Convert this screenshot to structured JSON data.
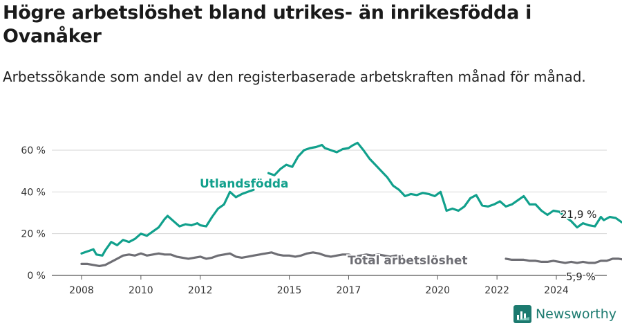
{
  "title": "Högre arbetslöshet bland utrikes- än inrikesfödda i Ovanåker",
  "subtitle": "Arbetssökande som andel av den registerbaserade arbetskraften månad för månad.",
  "brand": {
    "name": "Newsworthy",
    "color": "#1c7a6f"
  },
  "chart_data": {
    "type": "line",
    "ylim": [
      0,
      67
    ],
    "xlim": [
      2007.75,
      2025.5
    ],
    "y_ticks": [
      {
        "value": 0,
        "label": "0 %"
      },
      {
        "value": 20,
        "label": "20 %"
      },
      {
        "value": 40,
        "label": "40 %"
      },
      {
        "value": 60,
        "label": "60 %"
      }
    ],
    "x_ticks": [
      {
        "value": 2008,
        "label": "2008"
      },
      {
        "value": 2010,
        "label": "2010"
      },
      {
        "value": 2012,
        "label": "2012"
      },
      {
        "value": 2015,
        "label": "2015"
      },
      {
        "value": 2017,
        "label": "2017"
      },
      {
        "value": 2020,
        "label": "2020"
      },
      {
        "value": 2022,
        "label": "2022"
      },
      {
        "value": 2024,
        "label": "2024"
      }
    ],
    "grid": true,
    "series": [
      {
        "name": "Utlandsfödda",
        "color": "#11a08c",
        "end_label": "21,9 %",
        "points": [
          [
            2008.0,
            10.5
          ],
          [
            2008.2,
            11.5
          ],
          [
            2008.4,
            12.5
          ],
          [
            2008.5,
            10.0
          ],
          [
            2008.7,
            9.5
          ],
          [
            2008.8,
            12.0
          ],
          [
            2009.0,
            16.0
          ],
          [
            2009.2,
            14.5
          ],
          [
            2009.4,
            17.0
          ],
          [
            2009.6,
            16.0
          ],
          [
            2009.8,
            17.5
          ],
          [
            2010.0,
            20.0
          ],
          [
            2010.2,
            19.0
          ],
          [
            2010.4,
            21.0
          ],
          [
            2010.6,
            23.0
          ],
          [
            2010.8,
            27.0
          ],
          [
            2010.9,
            28.5
          ],
          [
            2011.1,
            26.0
          ],
          [
            2011.3,
            23.5
          ],
          [
            2011.5,
            24.5
          ],
          [
            2011.7,
            24.0
          ],
          [
            2011.9,
            25.0
          ],
          [
            2012.0,
            24.0
          ],
          [
            2012.2,
            23.5
          ],
          [
            2012.4,
            28.0
          ],
          [
            2012.6,
            32.0
          ],
          [
            2012.8,
            34.0
          ],
          [
            2013.0,
            40.0
          ],
          [
            2013.2,
            37.5
          ],
          [
            2013.4,
            39.0
          ],
          [
            2013.6,
            40.0
          ],
          [
            2013.8,
            41.0
          ],
          null,
          [
            2014.3,
            49.0
          ],
          [
            2014.5,
            48.0
          ],
          [
            2014.7,
            51.0
          ],
          [
            2014.9,
            53.0
          ],
          [
            2015.1,
            52.0
          ],
          [
            2015.3,
            57.0
          ],
          [
            2015.5,
            60.0
          ],
          [
            2015.7,
            61.0
          ],
          [
            2015.9,
            61.5
          ],
          [
            2016.1,
            62.5
          ],
          [
            2016.2,
            61.0
          ],
          [
            2016.4,
            60.0
          ],
          [
            2016.6,
            59.0
          ],
          [
            2016.8,
            60.5
          ],
          [
            2017.0,
            61.0
          ],
          [
            2017.1,
            62.0
          ],
          [
            2017.3,
            63.5
          ],
          [
            2017.5,
            60.0
          ],
          [
            2017.7,
            56.0
          ],
          [
            2017.9,
            53.0
          ],
          [
            2018.1,
            50.0
          ],
          [
            2018.3,
            47.0
          ],
          [
            2018.5,
            43.0
          ],
          [
            2018.7,
            41.0
          ],
          [
            2018.9,
            38.0
          ],
          [
            2019.1,
            39.0
          ],
          [
            2019.3,
            38.5
          ],
          [
            2019.5,
            39.5
          ],
          [
            2019.7,
            39.0
          ],
          [
            2019.9,
            38.0
          ],
          [
            2020.1,
            40.0
          ],
          [
            2020.3,
            31.0
          ],
          [
            2020.5,
            32.0
          ],
          [
            2020.7,
            31.0
          ],
          [
            2020.9,
            33.0
          ],
          [
            2021.1,
            37.0
          ],
          [
            2021.3,
            38.5
          ],
          [
            2021.5,
            33.5
          ],
          [
            2021.7,
            33.0
          ],
          [
            2021.9,
            34.0
          ],
          [
            2022.1,
            35.5
          ],
          [
            2022.3,
            33.0
          ],
          [
            2022.5,
            34.0
          ],
          [
            2022.7,
            36.0
          ],
          [
            2022.9,
            38.0
          ],
          [
            2023.1,
            34.0
          ],
          [
            2023.3,
            34.0
          ],
          [
            2023.5,
            31.0
          ],
          [
            2023.7,
            29.0
          ],
          [
            2023.9,
            31.0
          ],
          [
            2024.1,
            30.5
          ],
          [
            2024.3,
            28.0
          ],
          [
            2024.5,
            26.0
          ],
          [
            2024.7,
            23.0
          ],
          [
            2024.9,
            25.0
          ],
          [
            2025.1,
            24.0
          ],
          [
            2025.3,
            23.5
          ],
          [
            2025.5,
            28.0
          ],
          [
            2025.6,
            26.5
          ],
          [
            2025.8,
            28.0
          ],
          [
            2026.0,
            27.5
          ],
          [
            2026.2,
            25.5
          ],
          [
            2026.4,
            26.5
          ],
          [
            2026.6,
            24.0
          ],
          [
            2026.8,
            21.9
          ]
        ]
      },
      {
        "name": "Total arbetslöshet",
        "color": "#6e6e74",
        "end_label": "5,9 %",
        "points": [
          [
            2008.0,
            5.5
          ],
          [
            2008.2,
            5.5
          ],
          [
            2008.4,
            5.0
          ],
          [
            2008.6,
            4.5
          ],
          [
            2008.8,
            5.0
          ],
          [
            2009.0,
            6.5
          ],
          [
            2009.2,
            8.0
          ],
          [
            2009.4,
            9.5
          ],
          [
            2009.6,
            10.0
          ],
          [
            2009.8,
            9.5
          ],
          [
            2010.0,
            10.5
          ],
          [
            2010.2,
            9.5
          ],
          [
            2010.4,
            10.0
          ],
          [
            2010.6,
            10.5
          ],
          [
            2010.8,
            10.0
          ],
          [
            2011.0,
            10.0
          ],
          [
            2011.2,
            9.0
          ],
          [
            2011.4,
            8.5
          ],
          [
            2011.6,
            8.0
          ],
          [
            2011.8,
            8.5
          ],
          [
            2012.0,
            9.0
          ],
          [
            2012.2,
            8.0
          ],
          [
            2012.4,
            8.5
          ],
          [
            2012.6,
            9.5
          ],
          [
            2012.8,
            10.0
          ],
          [
            2013.0,
            10.5
          ],
          [
            2013.2,
            9.0
          ],
          [
            2013.4,
            8.5
          ],
          [
            2013.6,
            9.0
          ],
          [
            2013.8,
            9.5
          ],
          [
            2014.0,
            10.0
          ],
          [
            2014.2,
            10.5
          ],
          [
            2014.4,
            11.0
          ],
          [
            2014.6,
            10.0
          ],
          [
            2014.8,
            9.5
          ],
          [
            2015.0,
            9.5
          ],
          [
            2015.2,
            9.0
          ],
          [
            2015.4,
            9.5
          ],
          [
            2015.6,
            10.5
          ],
          [
            2015.8,
            11.0
          ],
          [
            2016.0,
            10.5
          ],
          [
            2016.2,
            9.5
          ],
          [
            2016.4,
            9.0
          ],
          [
            2016.6,
            9.5
          ],
          [
            2016.8,
            10.0
          ],
          [
            2017.0,
            10.0
          ],
          [
            2017.2,
            9.0
          ],
          [
            2017.4,
            9.5
          ],
          [
            2017.6,
            10.0
          ],
          [
            2017.8,
            9.5
          ],
          [
            2018.0,
            10.0
          ],
          [
            2018.2,
            9.5
          ],
          [
            2018.4,
            9.0
          ],
          [
            2018.6,
            9.5
          ],
          [
            2018.8,
            9.5
          ],
          null,
          [
            2022.3,
            8.0
          ],
          [
            2022.5,
            7.5
          ],
          [
            2022.7,
            7.5
          ],
          [
            2022.9,
            7.5
          ],
          [
            2023.1,
            7.0
          ],
          [
            2023.3,
            7.0
          ],
          [
            2023.5,
            6.5
          ],
          [
            2023.7,
            6.5
          ],
          [
            2023.9,
            7.0
          ],
          [
            2024.1,
            6.5
          ],
          [
            2024.3,
            6.0
          ],
          [
            2024.5,
            6.5
          ],
          [
            2024.7,
            6.0
          ],
          [
            2024.9,
            6.5
          ],
          [
            2025.1,
            6.0
          ],
          [
            2025.3,
            6.0
          ],
          [
            2025.5,
            7.0
          ],
          [
            2025.7,
            7.0
          ],
          [
            2025.9,
            8.0
          ],
          [
            2026.1,
            8.0
          ],
          [
            2026.3,
            7.5
          ],
          [
            2026.5,
            7.0
          ],
          [
            2026.7,
            7.5
          ],
          [
            2026.8,
            5.9
          ]
        ]
      }
    ]
  }
}
